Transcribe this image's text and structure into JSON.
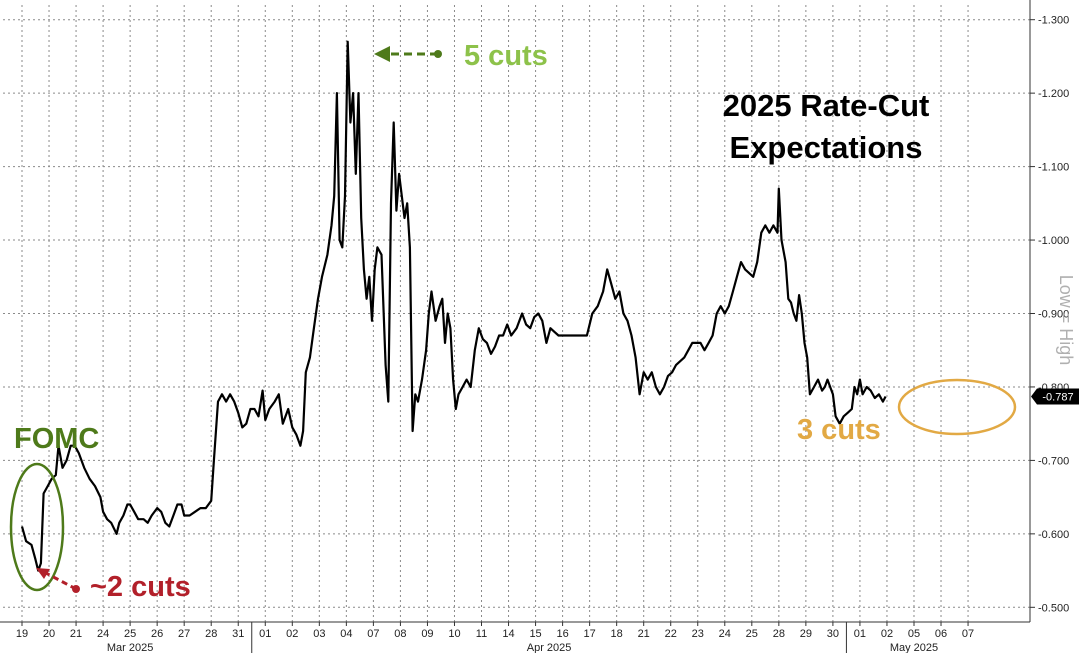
{
  "chart_data": {
    "type": "line",
    "title_lines": [
      "2025 Rate-Cut",
      "Expectations"
    ],
    "ylabel": "Low = High",
    "ylim": [
      0.48,
      1.32
    ],
    "yticks": [
      "1.300",
      "1.200",
      "1.100",
      "1.000",
      "0.900",
      "0.800",
      "0.700",
      "0.600",
      "0.500"
    ],
    "ytick_values": [
      1.3,
      1.2,
      1.1,
      1.0,
      0.9,
      0.8,
      0.7,
      0.6,
      0.5
    ],
    "last_value_label": "0.787",
    "last_value": 0.787,
    "day_labels": [
      "19",
      "20",
      "21",
      "24",
      "25",
      "26",
      "27",
      "28",
      "31",
      "01",
      "02",
      "03",
      "04",
      "07",
      "08",
      "09",
      "10",
      "11",
      "14",
      "15",
      "16",
      "17",
      "18",
      "21",
      "22",
      "23",
      "24",
      "25",
      "28",
      "29",
      "30",
      "01",
      "02",
      "05",
      "06",
      "07"
    ],
    "month_labels": [
      {
        "label": "Mar 2025",
        "at_day": 0
      },
      {
        "label": "Apr 2025",
        "at_day": 9
      },
      {
        "label": "May 2025",
        "at_day": 31
      }
    ],
    "month_separators_at_day": [
      9,
      31
    ],
    "series": [
      {
        "values": [
          [
            0.0,
            0.61
          ],
          [
            0.15,
            0.59
          ],
          [
            0.35,
            0.585
          ],
          [
            0.5,
            0.565
          ],
          [
            0.6,
            0.55
          ],
          [
            0.7,
            0.56
          ],
          [
            0.8,
            0.655
          ],
          [
            0.95,
            0.665
          ],
          [
            1.1,
            0.675
          ],
          [
            1.25,
            0.68
          ],
          [
            1.35,
            0.72
          ],
          [
            1.5,
            0.69
          ],
          [
            1.65,
            0.7
          ],
          [
            1.8,
            0.72
          ],
          [
            1.95,
            0.72
          ],
          [
            2.1,
            0.71
          ],
          [
            2.3,
            0.69
          ],
          [
            2.5,
            0.675
          ],
          [
            2.7,
            0.665
          ],
          [
            2.9,
            0.65
          ],
          [
            3.0,
            0.63
          ],
          [
            3.15,
            0.62
          ],
          [
            3.3,
            0.615
          ],
          [
            3.5,
            0.6
          ],
          [
            3.6,
            0.615
          ],
          [
            3.75,
            0.625
          ],
          [
            3.9,
            0.64
          ],
          [
            4.0,
            0.64
          ],
          [
            4.15,
            0.63
          ],
          [
            4.3,
            0.62
          ],
          [
            4.5,
            0.62
          ],
          [
            4.65,
            0.615
          ],
          [
            4.8,
            0.625
          ],
          [
            5.0,
            0.635
          ],
          [
            5.15,
            0.63
          ],
          [
            5.3,
            0.615
          ],
          [
            5.45,
            0.61
          ],
          [
            5.6,
            0.625
          ],
          [
            5.75,
            0.64
          ],
          [
            5.9,
            0.64
          ],
          [
            6.0,
            0.625
          ],
          [
            6.2,
            0.625
          ],
          [
            6.4,
            0.63
          ],
          [
            6.6,
            0.635
          ],
          [
            6.8,
            0.635
          ],
          [
            7.0,
            0.645
          ],
          [
            7.1,
            0.7
          ],
          [
            7.25,
            0.78
          ],
          [
            7.4,
            0.79
          ],
          [
            7.55,
            0.78
          ],
          [
            7.7,
            0.79
          ],
          [
            7.85,
            0.78
          ],
          [
            8.0,
            0.765
          ],
          [
            8.15,
            0.745
          ],
          [
            8.3,
            0.75
          ],
          [
            8.45,
            0.77
          ],
          [
            8.6,
            0.77
          ],
          [
            8.75,
            0.76
          ],
          [
            8.9,
            0.795
          ],
          [
            9.0,
            0.755
          ],
          [
            9.15,
            0.77
          ],
          [
            9.35,
            0.78
          ],
          [
            9.5,
            0.79
          ],
          [
            9.65,
            0.75
          ],
          [
            9.85,
            0.77
          ],
          [
            10.0,
            0.745
          ],
          [
            10.15,
            0.735
          ],
          [
            10.3,
            0.72
          ],
          [
            10.4,
            0.74
          ],
          [
            10.5,
            0.82
          ],
          [
            10.65,
            0.84
          ],
          [
            10.8,
            0.88
          ],
          [
            10.95,
            0.92
          ],
          [
            11.1,
            0.95
          ],
          [
            11.3,
            0.98
          ],
          [
            11.45,
            1.02
          ],
          [
            11.55,
            1.06
          ],
          [
            11.65,
            1.2
          ],
          [
            11.75,
            1.0
          ],
          [
            11.85,
            0.99
          ],
          [
            11.95,
            1.06
          ],
          [
            12.05,
            1.27
          ],
          [
            12.15,
            1.16
          ],
          [
            12.25,
            1.2
          ],
          [
            12.35,
            1.09
          ],
          [
            12.45,
            1.2
          ],
          [
            12.55,
            1.03
          ],
          [
            12.65,
            0.96
          ],
          [
            12.75,
            0.92
          ],
          [
            12.85,
            0.95
          ],
          [
            12.95,
            0.89
          ],
          [
            13.05,
            0.96
          ],
          [
            13.15,
            0.99
          ],
          [
            13.3,
            0.98
          ],
          [
            13.45,
            0.83
          ],
          [
            13.55,
            0.78
          ],
          [
            13.65,
            1.05
          ],
          [
            13.75,
            1.16
          ],
          [
            13.85,
            1.04
          ],
          [
            13.95,
            1.09
          ],
          [
            14.05,
            1.06
          ],
          [
            14.15,
            1.03
          ],
          [
            14.25,
            1.05
          ],
          [
            14.35,
            0.99
          ],
          [
            14.45,
            0.74
          ],
          [
            14.55,
            0.79
          ],
          [
            14.65,
            0.78
          ],
          [
            14.8,
            0.81
          ],
          [
            14.95,
            0.85
          ],
          [
            15.05,
            0.9
          ],
          [
            15.15,
            0.93
          ],
          [
            15.3,
            0.89
          ],
          [
            15.45,
            0.91
          ],
          [
            15.55,
            0.92
          ],
          [
            15.65,
            0.86
          ],
          [
            15.75,
            0.9
          ],
          [
            15.85,
            0.88
          ],
          [
            15.95,
            0.81
          ],
          [
            16.05,
            0.77
          ],
          [
            16.15,
            0.79
          ],
          [
            16.3,
            0.8
          ],
          [
            16.45,
            0.81
          ],
          [
            16.6,
            0.8
          ],
          [
            16.75,
            0.85
          ],
          [
            16.9,
            0.88
          ],
          [
            17.05,
            0.865
          ],
          [
            17.2,
            0.86
          ],
          [
            17.35,
            0.845
          ],
          [
            17.5,
            0.855
          ],
          [
            17.65,
            0.87
          ],
          [
            17.8,
            0.87
          ],
          [
            17.95,
            0.885
          ],
          [
            18.1,
            0.87
          ],
          [
            18.3,
            0.88
          ],
          [
            18.5,
            0.9
          ],
          [
            18.65,
            0.885
          ],
          [
            18.8,
            0.88
          ],
          [
            18.95,
            0.895
          ],
          [
            19.1,
            0.9
          ],
          [
            19.25,
            0.89
          ],
          [
            19.4,
            0.86
          ],
          [
            19.55,
            0.88
          ],
          [
            19.7,
            0.875
          ],
          [
            19.85,
            0.87
          ],
          [
            20.0,
            0.87
          ],
          [
            20.3,
            0.87
          ],
          [
            20.6,
            0.87
          ],
          [
            20.9,
            0.87
          ],
          [
            21.1,
            0.9
          ],
          [
            21.3,
            0.91
          ],
          [
            21.5,
            0.93
          ],
          [
            21.65,
            0.96
          ],
          [
            21.8,
            0.94
          ],
          [
            21.95,
            0.92
          ],
          [
            22.1,
            0.93
          ],
          [
            22.25,
            0.9
          ],
          [
            22.4,
            0.89
          ],
          [
            22.55,
            0.87
          ],
          [
            22.7,
            0.84
          ],
          [
            22.85,
            0.79
          ],
          [
            23.0,
            0.82
          ],
          [
            23.15,
            0.81
          ],
          [
            23.3,
            0.82
          ],
          [
            23.45,
            0.8
          ],
          [
            23.6,
            0.79
          ],
          [
            23.75,
            0.8
          ],
          [
            23.9,
            0.815
          ],
          [
            24.05,
            0.82
          ],
          [
            24.2,
            0.83
          ],
          [
            24.35,
            0.835
          ],
          [
            24.5,
            0.84
          ],
          [
            24.65,
            0.85
          ],
          [
            24.8,
            0.86
          ],
          [
            24.95,
            0.86
          ],
          [
            25.1,
            0.86
          ],
          [
            25.25,
            0.85
          ],
          [
            25.4,
            0.86
          ],
          [
            25.55,
            0.87
          ],
          [
            25.7,
            0.9
          ],
          [
            25.85,
            0.91
          ],
          [
            26.0,
            0.9
          ],
          [
            26.15,
            0.91
          ],
          [
            26.3,
            0.93
          ],
          [
            26.45,
            0.95
          ],
          [
            26.6,
            0.97
          ],
          [
            26.75,
            0.96
          ],
          [
            26.9,
            0.955
          ],
          [
            27.05,
            0.95
          ],
          [
            27.2,
            0.97
          ],
          [
            27.35,
            1.01
          ],
          [
            27.5,
            1.02
          ],
          [
            27.65,
            1.01
          ],
          [
            27.8,
            1.02
          ],
          [
            27.95,
            1.01
          ],
          [
            28.0,
            1.07
          ],
          [
            28.1,
            1.0
          ],
          [
            28.25,
            0.97
          ],
          [
            28.35,
            0.92
          ],
          [
            28.45,
            0.915
          ],
          [
            28.55,
            0.9
          ],
          [
            28.65,
            0.89
          ],
          [
            28.75,
            0.925
          ],
          [
            28.85,
            0.9
          ],
          [
            28.95,
            0.86
          ],
          [
            29.05,
            0.84
          ],
          [
            29.15,
            0.79
          ],
          [
            29.3,
            0.8
          ],
          [
            29.45,
            0.81
          ],
          [
            29.6,
            0.795
          ],
          [
            29.7,
            0.8
          ],
          [
            29.8,
            0.81
          ],
          [
            29.9,
            0.8
          ],
          [
            30.0,
            0.79
          ],
          [
            30.1,
            0.76
          ],
          [
            30.25,
            0.75
          ],
          [
            30.4,
            0.76
          ],
          [
            30.55,
            0.765
          ],
          [
            30.7,
            0.77
          ],
          [
            30.8,
            0.8
          ],
          [
            30.9,
            0.79
          ],
          [
            31.0,
            0.81
          ],
          [
            31.1,
            0.79
          ],
          [
            31.25,
            0.8
          ],
          [
            31.4,
            0.795
          ],
          [
            31.55,
            0.785
          ],
          [
            31.7,
            0.79
          ],
          [
            31.85,
            0.78
          ],
          [
            31.95,
            0.787
          ]
        ]
      }
    ],
    "annotations": [
      {
        "text": "FOMC",
        "color": "#4e7a1a"
      },
      {
        "text": "~2 cuts",
        "color": "#b2202a"
      },
      {
        "text": "5 cuts",
        "color": "#8dc24a"
      },
      {
        "text": "3 cuts",
        "color": "#e2a944"
      }
    ],
    "colors": {
      "line": "#000000",
      "grid": "#8a8a8a",
      "fomc": "#4e7a1a",
      "two_cuts": "#b2202a",
      "five_cuts": "#8dc24a",
      "three_cuts": "#e2a944",
      "last_value_box": "#000000",
      "ylabel": "#b0b0b0"
    }
  }
}
